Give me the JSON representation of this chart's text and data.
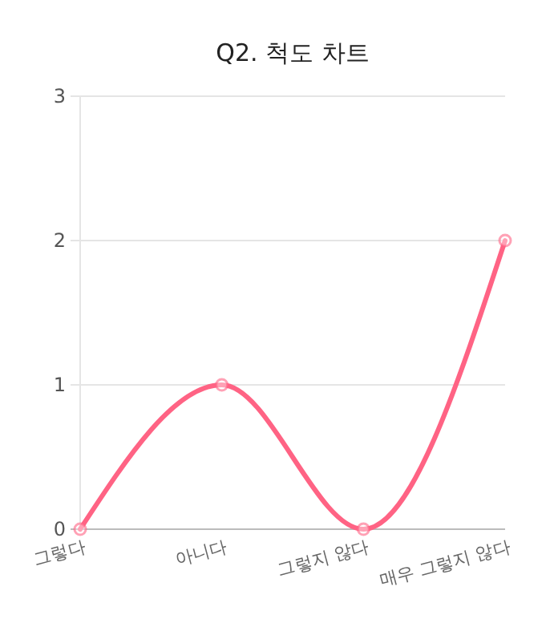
{
  "chart_data": {
    "type": "line",
    "title": "Q2. 척도 차트",
    "categories": [
      "그렇다",
      "아니다",
      "그렇지 않다",
      "매우 그렇지 않다"
    ],
    "series": [
      {
        "color": "#ff6384",
        "values": [
          0,
          1,
          0,
          2
        ]
      }
    ],
    "ylim": [
      0,
      3
    ],
    "yticks": [
      0,
      1,
      2,
      3
    ],
    "grid": "y",
    "marker": "circle",
    "line_style": "solid"
  }
}
